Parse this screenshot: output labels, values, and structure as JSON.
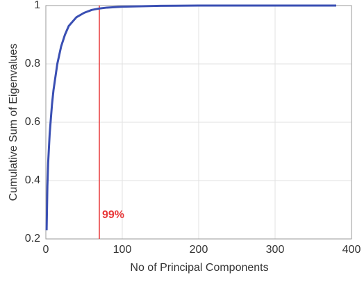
{
  "chart_data": {
    "type": "line",
    "x_label": "No of Principal Components",
    "y_label": "Cumulative Sum of Eigenvalues",
    "x": [
      1,
      2,
      3,
      5,
      8,
      10,
      15,
      20,
      25,
      30,
      40,
      50,
      60,
      70,
      80,
      100,
      150,
      200,
      300,
      380
    ],
    "values": [
      0.23,
      0.38,
      0.46,
      0.56,
      0.66,
      0.71,
      0.8,
      0.86,
      0.9,
      0.93,
      0.96,
      0.975,
      0.985,
      0.99,
      0.993,
      0.996,
      0.999,
      1,
      1,
      1
    ],
    "color": "#3a4fb3",
    "xlim": [
      0,
      400
    ],
    "xticks": [
      0,
      100,
      200,
      300,
      400
    ],
    "ylim": [
      0.2,
      1
    ],
    "yticks": [
      0.2,
      0.4,
      0.6,
      0.8,
      1
    ],
    "grid": true,
    "markers": [
      {
        "x": 70,
        "label": "99%",
        "color": "#e8393a"
      }
    ]
  }
}
